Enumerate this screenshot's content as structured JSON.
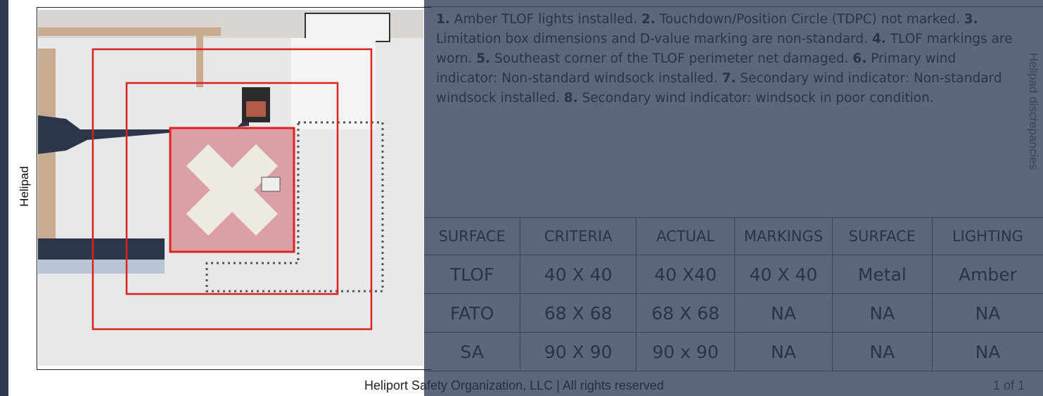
{
  "side_label": "Helipad",
  "discrepancies_label": "Helipad discrepancies",
  "discrepancies": [
    {
      "num": "1.",
      "text": "Amber TLOF lights installed."
    },
    {
      "num": "2.",
      "text": "Touchdown/Position Circle (TDPC) not marked."
    },
    {
      "num": "3.",
      "text": "Limitation box dimensions and D-value marking are non-standard."
    },
    {
      "num": "4.",
      "text": "TLOF markings are worn."
    },
    {
      "num": "5.",
      "text": "Southeast corner of the TLOF perimeter net damaged."
    },
    {
      "num": "6.",
      "text": "Primary wind indicator: Non-standard windsock installed."
    },
    {
      "num": "7.",
      "text": "Secondary wind indicator: Non-standard windsock installed."
    },
    {
      "num": "8.",
      "text": "Secondary wind indicator: windsock in poor condition."
    }
  ],
  "table": {
    "header": [
      "SURFACE",
      "CRITERIA",
      "ACTUAL",
      "MARKINGS",
      "SURFACE",
      "LIGHTING"
    ],
    "rows": [
      [
        "TLOF",
        "40 X 40",
        "40 X40",
        "40 X 40",
        "Metal",
        "Amber"
      ],
      [
        "FATO",
        "68 X 68",
        "68 X 68",
        "NA",
        "NA",
        "NA"
      ],
      [
        "SA",
        "90 X 90",
        "90 x 90",
        "NA",
        "NA",
        "NA"
      ]
    ]
  },
  "footer": "Heliport Safety Organization, LLC | All rights reserved",
  "page": "1 of 1"
}
